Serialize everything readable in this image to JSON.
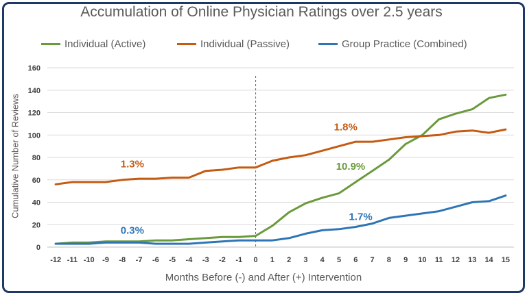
{
  "chart_data": {
    "type": "line",
    "title": "Accumulation of Online Physician Ratings over 2.5 years",
    "xlabel": "Months Before (-) and After (+) Intervention",
    "ylabel": "Cumulative Number of Reviews",
    "x": [
      -12,
      -11,
      -10,
      -9,
      -8,
      -7,
      -6,
      -5,
      -4,
      -3,
      -2,
      -1,
      0,
      1,
      2,
      3,
      4,
      5,
      6,
      7,
      8,
      9,
      10,
      11,
      12,
      13,
      14,
      15
    ],
    "ylim": [
      0,
      160
    ],
    "yticks": [
      0,
      20,
      40,
      60,
      80,
      100,
      120,
      140,
      160
    ],
    "grid": "horizontal",
    "legend_position": "top",
    "intervention_line_x": 0,
    "series": [
      {
        "name": "Individual (Active)",
        "color": "#6a9a3c",
        "values": [
          3,
          4,
          4,
          5,
          5,
          5,
          6,
          6,
          7,
          8,
          9,
          9,
          10,
          19,
          31,
          39,
          44,
          48,
          58,
          68,
          78,
          92,
          100,
          114,
          119,
          123,
          133,
          136
        ]
      },
      {
        "name": "Individual (Passive)",
        "color": "#c55a11",
        "values": [
          56,
          58,
          58,
          58,
          60,
          61,
          61,
          62,
          62,
          68,
          69,
          71,
          71,
          77,
          80,
          82,
          86,
          90,
          94,
          94,
          96,
          98,
          99,
          100,
          103,
          104,
          102,
          105
        ]
      },
      {
        "name": "Group Practice (Combined)",
        "color": "#2e75b6",
        "values": [
          3,
          3,
          3,
          4,
          4,
          4,
          3,
          3,
          3,
          4,
          5,
          6,
          6,
          6,
          8,
          12,
          15,
          16,
          18,
          21,
          26,
          28,
          30,
          32,
          36,
          40,
          41,
          46
        ]
      }
    ],
    "annotations": [
      {
        "text": "1.3%",
        "x": -7.4,
        "y": 71,
        "color": "#c55a11"
      },
      {
        "text": "1.8%",
        "x": 5.4,
        "y": 104,
        "color": "#c55a11"
      },
      {
        "text": "10.9%",
        "x": 5.7,
        "y": 69,
        "color": "#6a9a3c"
      },
      {
        "text": "0.3%",
        "x": -7.4,
        "y": 12,
        "color": "#2e75b6"
      },
      {
        "text": "1.7%",
        "x": 6.3,
        "y": 24,
        "color": "#2e75b6"
      }
    ]
  }
}
